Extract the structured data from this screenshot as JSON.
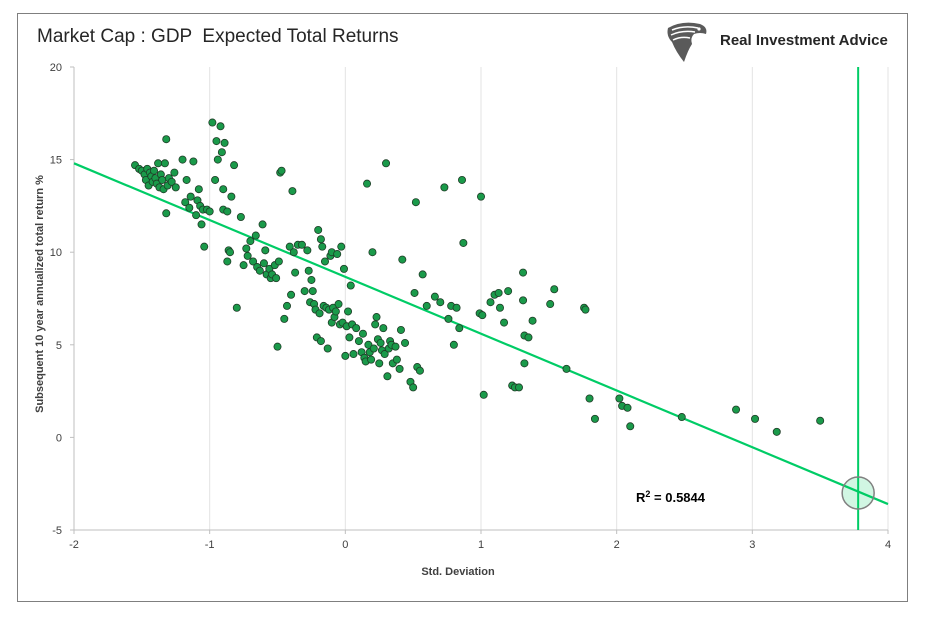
{
  "chart_data": {
    "type": "scatter",
    "title": "Market Cap : GDP  Expected Total Returns",
    "xlabel": "Std. Deviation",
    "ylabel": "Subsequent 10 year annualized total return %",
    "xlim": [
      -2,
      4
    ],
    "ylim": [
      -5,
      20
    ],
    "xticks": [
      "-2",
      "-1",
      "0",
      "1",
      "2",
      "3",
      "4"
    ],
    "yticks": [
      "-5",
      "0",
      "5",
      "10",
      "15",
      "20"
    ],
    "grid": "vertical",
    "point_color": "#1a9a4a",
    "trend_color": "#00cc66",
    "trendline": {
      "x": [
        -2,
        4
      ],
      "y": [
        14.8,
        -3.6
      ]
    },
    "marker_line_x": 3.78,
    "highlight_point": {
      "x": 3.78,
      "y": -3.0
    },
    "annotation": {
      "label": "R",
      "sup": "2",
      "value": " = 0.5844"
    },
    "points": [
      [
        -1.55,
        14.7
      ],
      [
        -1.52,
        14.5
      ],
      [
        -1.5,
        14.4
      ],
      [
        -1.48,
        14.2
      ],
      [
        -1.47,
        13.9
      ],
      [
        -1.46,
        14.5
      ],
      [
        -1.45,
        13.6
      ],
      [
        -1.44,
        14.3
      ],
      [
        -1.43,
        14.1
      ],
      [
        -1.42,
        13.8
      ],
      [
        -1.41,
        14.4
      ],
      [
        -1.4,
        14.0
      ],
      [
        -1.39,
        13.7
      ],
      [
        -1.38,
        14.8
      ],
      [
        -1.37,
        13.5
      ],
      [
        -1.36,
        14.2
      ],
      [
        -1.35,
        13.9
      ],
      [
        -1.34,
        13.4
      ],
      [
        -1.33,
        14.8
      ],
      [
        -1.32,
        16.1
      ],
      [
        -1.32,
        12.1
      ],
      [
        -1.31,
        13.6
      ],
      [
        -1.3,
        14.0
      ],
      [
        -1.28,
        13.8
      ],
      [
        -1.26,
        14.3
      ],
      [
        -1.25,
        13.5
      ],
      [
        -1.2,
        15.0
      ],
      [
        -1.18,
        12.7
      ],
      [
        -1.17,
        13.9
      ],
      [
        -1.15,
        12.4
      ],
      [
        -1.14,
        13.0
      ],
      [
        -1.12,
        14.9
      ],
      [
        -1.1,
        12.0
      ],
      [
        -1.09,
        12.8
      ],
      [
        -1.08,
        13.4
      ],
      [
        -1.07,
        12.5
      ],
      [
        -1.06,
        11.5
      ],
      [
        -1.05,
        12.3
      ],
      [
        -1.04,
        10.3
      ],
      [
        -1.02,
        12.3
      ],
      [
        -1.0,
        12.2
      ],
      [
        -0.98,
        17.0
      ],
      [
        -0.96,
        13.9
      ],
      [
        -0.95,
        16.0
      ],
      [
        -0.94,
        15.0
      ],
      [
        -0.92,
        16.8
      ],
      [
        -0.91,
        15.4
      ],
      [
        -0.9,
        13.4
      ],
      [
        -0.9,
        12.3
      ],
      [
        -0.89,
        15.9
      ],
      [
        -0.87,
        12.2
      ],
      [
        -0.87,
        9.5
      ],
      [
        -0.86,
        10.1
      ],
      [
        -0.85,
        10.0
      ],
      [
        -0.84,
        13.0
      ],
      [
        -0.82,
        14.7
      ],
      [
        -0.8,
        7.0
      ],
      [
        -0.77,
        11.9
      ],
      [
        -0.75,
        9.3
      ],
      [
        -0.73,
        10.2
      ],
      [
        -0.72,
        9.8
      ],
      [
        -0.7,
        10.6
      ],
      [
        -0.68,
        9.5
      ],
      [
        -0.66,
        10.9
      ],
      [
        -0.65,
        9.2
      ],
      [
        -0.63,
        9.0
      ],
      [
        -0.61,
        11.5
      ],
      [
        -0.6,
        9.4
      ],
      [
        -0.59,
        10.1
      ],
      [
        -0.58,
        8.8
      ],
      [
        -0.56,
        9.1
      ],
      [
        -0.55,
        8.6
      ],
      [
        -0.54,
        8.8
      ],
      [
        -0.52,
        9.3
      ],
      [
        -0.51,
        8.6
      ],
      [
        -0.5,
        4.9
      ],
      [
        -0.49,
        9.5
      ],
      [
        -0.48,
        14.3
      ],
      [
        -0.47,
        14.4
      ],
      [
        -0.45,
        6.4
      ],
      [
        -0.43,
        7.1
      ],
      [
        -0.41,
        10.3
      ],
      [
        -0.4,
        7.7
      ],
      [
        -0.39,
        13.3
      ],
      [
        -0.38,
        10.0
      ],
      [
        -0.37,
        8.9
      ],
      [
        -0.35,
        10.4
      ],
      [
        -0.32,
        10.4
      ],
      [
        -0.3,
        7.9
      ],
      [
        -0.28,
        10.1
      ],
      [
        -0.27,
        9.0
      ],
      [
        -0.26,
        7.3
      ],
      [
        -0.25,
        8.5
      ],
      [
        -0.24,
        7.9
      ],
      [
        -0.23,
        7.2
      ],
      [
        -0.22,
        6.9
      ],
      [
        -0.21,
        5.4
      ],
      [
        -0.2,
        11.2
      ],
      [
        -0.19,
        6.7
      ],
      [
        -0.18,
        5.2
      ],
      [
        -0.18,
        10.7
      ],
      [
        -0.17,
        10.3
      ],
      [
        -0.16,
        7.1
      ],
      [
        -0.15,
        9.5
      ],
      [
        -0.14,
        7.0
      ],
      [
        -0.13,
        4.8
      ],
      [
        -0.12,
        6.9
      ],
      [
        -0.11,
        9.8
      ],
      [
        -0.1,
        6.2
      ],
      [
        -0.1,
        10.0
      ],
      [
        -0.09,
        7.0
      ],
      [
        -0.08,
        6.5
      ],
      [
        -0.07,
        6.8
      ],
      [
        -0.06,
        9.9
      ],
      [
        -0.05,
        7.2
      ],
      [
        -0.04,
        6.1
      ],
      [
        -0.03,
        10.3
      ],
      [
        -0.02,
        6.2
      ],
      [
        -0.01,
        9.1
      ],
      [
        0.0,
        4.4
      ],
      [
        0.01,
        6.0
      ],
      [
        0.02,
        6.8
      ],
      [
        0.03,
        5.4
      ],
      [
        0.04,
        8.2
      ],
      [
        0.05,
        6.1
      ],
      [
        0.06,
        4.5
      ],
      [
        0.08,
        5.9
      ],
      [
        0.1,
        5.2
      ],
      [
        0.12,
        4.6
      ],
      [
        0.13,
        5.6
      ],
      [
        0.14,
        4.3
      ],
      [
        0.15,
        4.1
      ],
      [
        0.16,
        13.7
      ],
      [
        0.17,
        5.0
      ],
      [
        0.18,
        4.6
      ],
      [
        0.19,
        4.2
      ],
      [
        0.2,
        10.0
      ],
      [
        0.21,
        4.8
      ],
      [
        0.22,
        6.1
      ],
      [
        0.23,
        6.5
      ],
      [
        0.24,
        5.3
      ],
      [
        0.25,
        4.0
      ],
      [
        0.26,
        5.1
      ],
      [
        0.27,
        4.7
      ],
      [
        0.28,
        5.9
      ],
      [
        0.29,
        4.5
      ],
      [
        0.3,
        14.8
      ],
      [
        0.31,
        3.3
      ],
      [
        0.32,
        4.8
      ],
      [
        0.33,
        5.2
      ],
      [
        0.34,
        5.0
      ],
      [
        0.35,
        4.0
      ],
      [
        0.37,
        4.9
      ],
      [
        0.38,
        4.2
      ],
      [
        0.4,
        3.7
      ],
      [
        0.41,
        5.8
      ],
      [
        0.42,
        9.6
      ],
      [
        0.44,
        5.1
      ],
      [
        0.48,
        3.0
      ],
      [
        0.5,
        2.7
      ],
      [
        0.51,
        7.8
      ],
      [
        0.52,
        12.7
      ],
      [
        0.53,
        3.8
      ],
      [
        0.55,
        3.6
      ],
      [
        0.57,
        8.8
      ],
      [
        0.6,
        7.1
      ],
      [
        0.66,
        7.6
      ],
      [
        0.7,
        7.3
      ],
      [
        0.73,
        13.5
      ],
      [
        0.76,
        6.4
      ],
      [
        0.78,
        7.1
      ],
      [
        0.8,
        5.0
      ],
      [
        0.82,
        7.0
      ],
      [
        0.84,
        5.9
      ],
      [
        0.86,
        13.9
      ],
      [
        0.87,
        10.5
      ],
      [
        0.99,
        6.7
      ],
      [
        1.0,
        13.0
      ],
      [
        1.01,
        6.6
      ],
      [
        1.02,
        2.3
      ],
      [
        1.07,
        7.3
      ],
      [
        1.1,
        7.7
      ],
      [
        1.13,
        7.8
      ],
      [
        1.14,
        7.0
      ],
      [
        1.17,
        6.2
      ],
      [
        1.2,
        7.9
      ],
      [
        1.23,
        2.8
      ],
      [
        1.25,
        2.7
      ],
      [
        1.28,
        2.7
      ],
      [
        1.31,
        8.9
      ],
      [
        1.31,
        7.4
      ],
      [
        1.32,
        5.5
      ],
      [
        1.32,
        4.0
      ],
      [
        1.35,
        5.4
      ],
      [
        1.38,
        6.3
      ],
      [
        1.51,
        7.2
      ],
      [
        1.54,
        8.0
      ],
      [
        1.63,
        3.7
      ],
      [
        1.76,
        7.0
      ],
      [
        1.77,
        6.9
      ],
      [
        1.8,
        2.1
      ],
      [
        1.84,
        1.0
      ],
      [
        2.02,
        2.1
      ],
      [
        2.04,
        1.7
      ],
      [
        2.08,
        1.6
      ],
      [
        2.1,
        0.6
      ],
      [
        2.48,
        1.1
      ],
      [
        2.88,
        1.5
      ],
      [
        3.02,
        1.0
      ],
      [
        3.18,
        0.3
      ],
      [
        3.5,
        0.9
      ]
    ]
  },
  "brand": {
    "name": "Real Investment Advice",
    "logo_icon": "eagle-head-icon"
  }
}
